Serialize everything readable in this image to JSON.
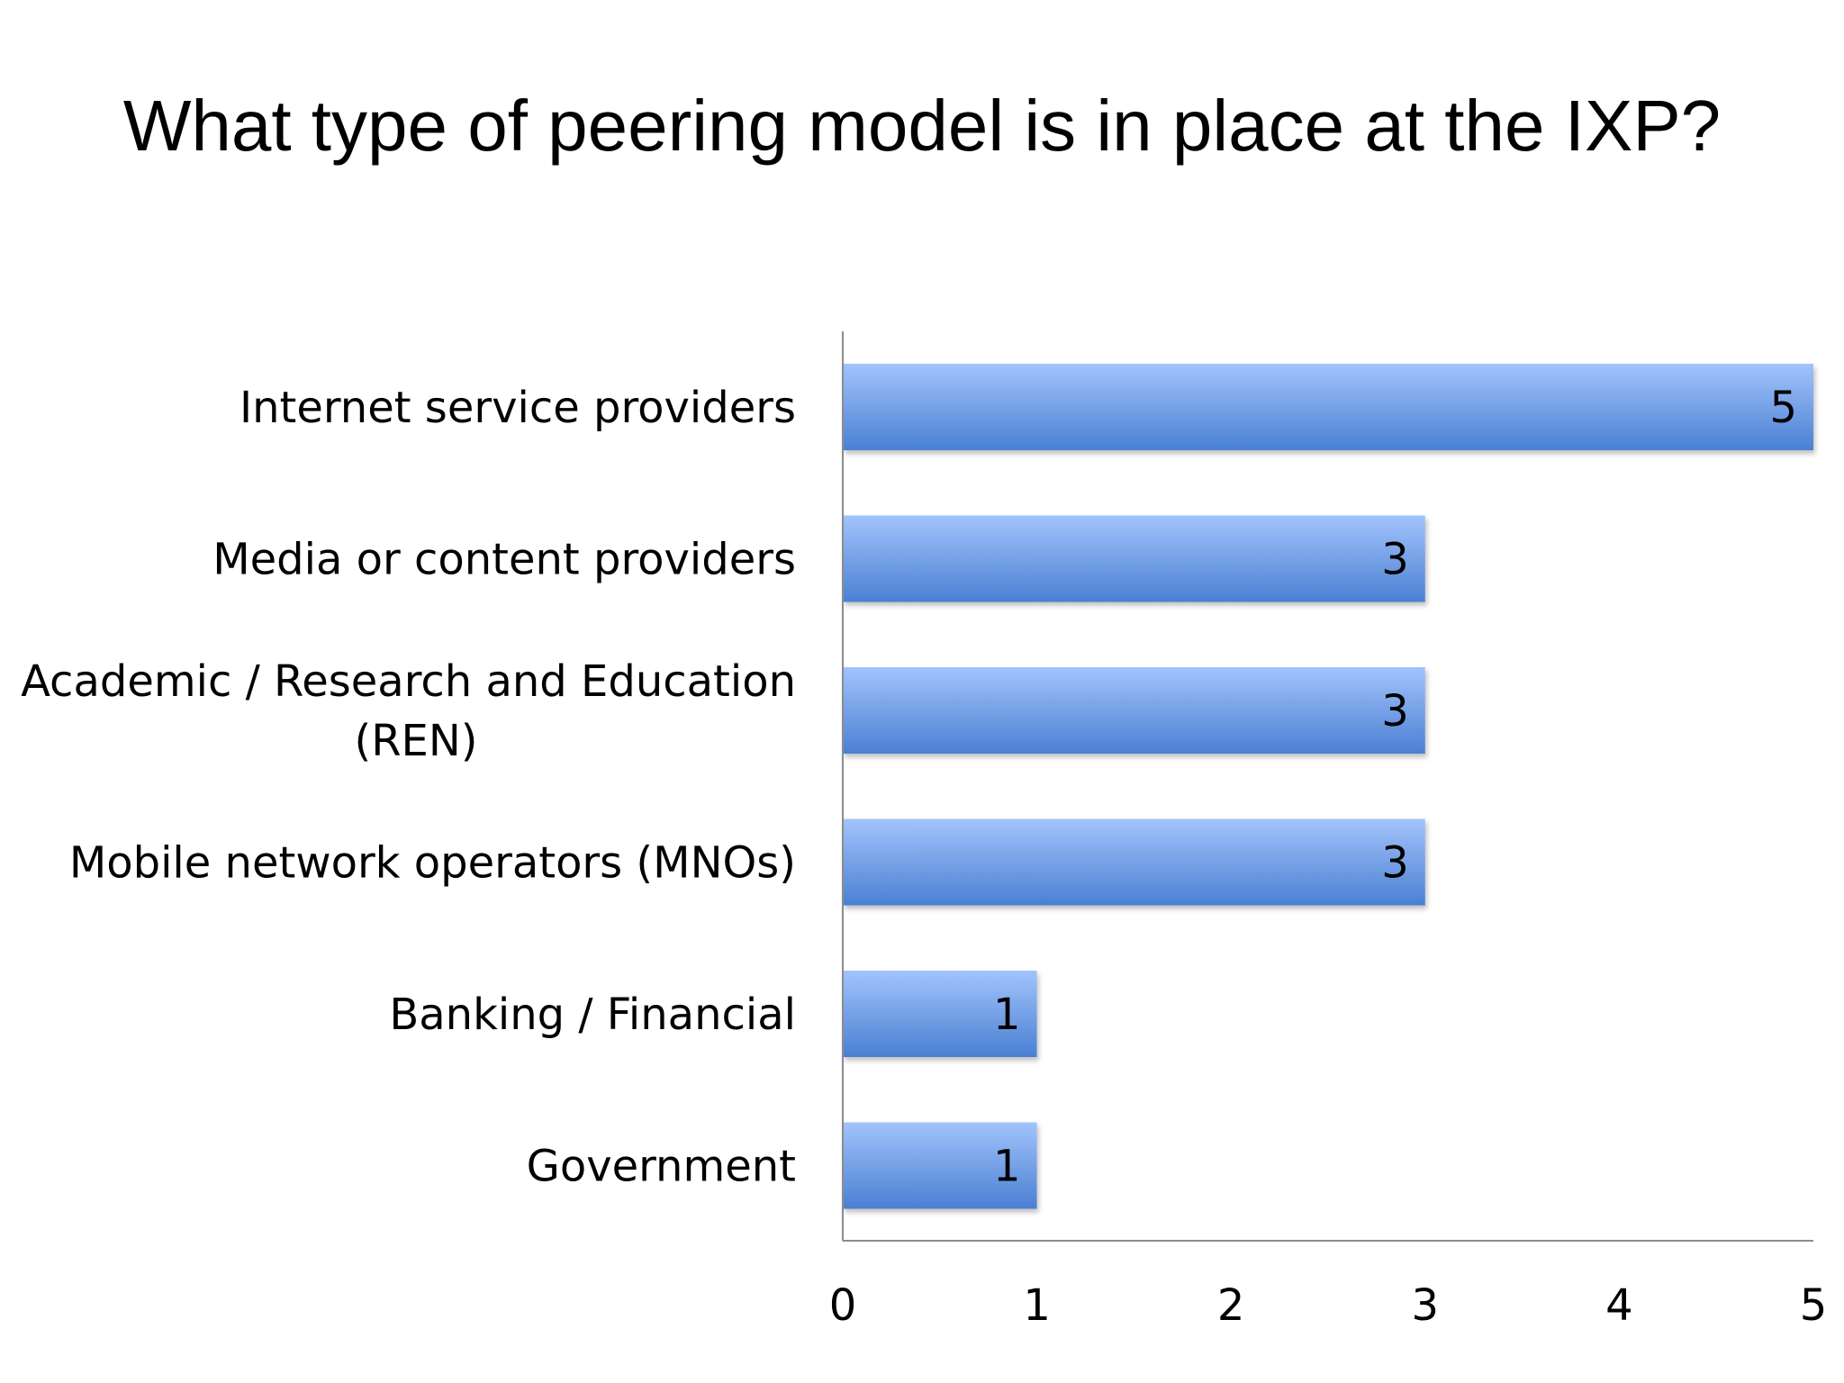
{
  "chart_data": {
    "type": "bar",
    "orientation": "horizontal",
    "title": "What type of peering model is in place at the IXP?",
    "categories": [
      [
        "Internet service providers"
      ],
      [
        "Media or content providers"
      ],
      [
        "Academic / Research and Education",
        "(REN)"
      ],
      [
        "Mobile network operators (MNOs)"
      ],
      [
        "Banking / Financial"
      ],
      [
        "Government"
      ]
    ],
    "values": [
      5,
      3,
      3,
      3,
      1,
      1
    ],
    "data_labels": [
      "5",
      "3",
      "3",
      "3",
      "1",
      "1"
    ],
    "xlabel": "",
    "ylabel": "",
    "xlim": [
      0,
      5
    ],
    "x_ticks": [
      "0",
      "1",
      "2",
      "3",
      "4",
      "5"
    ],
    "grid": false,
    "legend": "none",
    "colors": {
      "bar_top": "#a2c3fb",
      "bar_bottom": "#4a80d3",
      "axis": "#8c8c8c"
    }
  }
}
